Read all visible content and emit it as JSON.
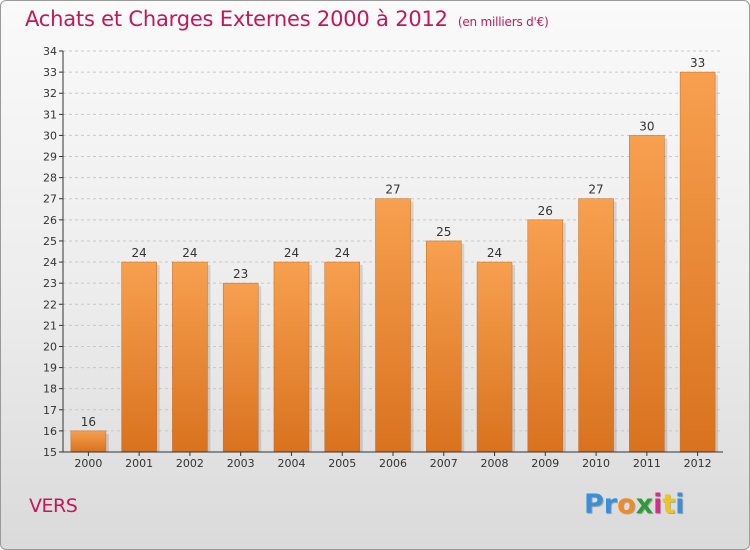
{
  "title": "Achats et Charges Externes 2000 à 2012",
  "subtitle": "(en milliers d'€)",
  "place": "VERS",
  "logo": {
    "letters": [
      "P",
      "r",
      "o",
      "x",
      "i",
      "t",
      "i"
    ],
    "colors": [
      "#3a8fd6",
      "#3a8fd6",
      "#f08a24",
      "#2e9a3a",
      "#d92c8a",
      "#f0c419",
      "#3a8fd6"
    ]
  },
  "colors": {
    "title": "#c2185b",
    "bar_light": "#f7a04f",
    "bar_dark": "#d9721f",
    "axis": "#333333",
    "grid": "#c8c8c8"
  },
  "chart_data": {
    "type": "bar",
    "categories": [
      "2000",
      "2001",
      "2002",
      "2003",
      "2004",
      "2005",
      "2006",
      "2007",
      "2008",
      "2009",
      "2010",
      "2011",
      "2012"
    ],
    "values": [
      16,
      24,
      24,
      23,
      24,
      24,
      27,
      25,
      24,
      26,
      27,
      30,
      33
    ],
    "ylim": [
      15,
      34
    ],
    "yticks": [
      15,
      16,
      17,
      18,
      19,
      20,
      21,
      22,
      23,
      24,
      25,
      26,
      27,
      28,
      29,
      30,
      31,
      32,
      33,
      34
    ],
    "grid": "horizontal dashed",
    "data_labels": true
  }
}
